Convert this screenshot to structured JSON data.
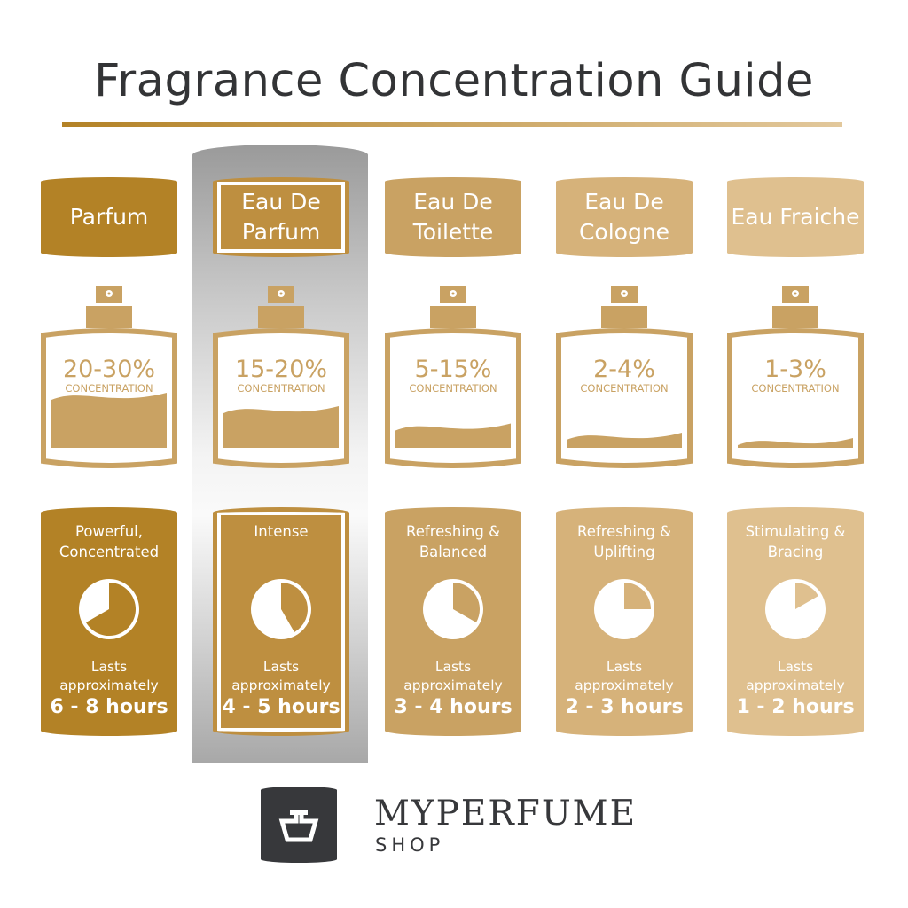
{
  "title": "Fragrance Concentration Guide",
  "logo": {
    "brand": "MYPERFUME",
    "sub": "SHOP"
  },
  "highlighted_index": 1,
  "columns": [
    {
      "name": "Parfum",
      "concentration": "20-30%",
      "concentration_label": "CONCENTRATION",
      "liquid_level": 0.4,
      "description": "Powerful, Concentrated",
      "lasts_label": "Lasts approximately",
      "duration": "6 - 8 hours",
      "duration_max_hours": 8,
      "color": "#b38226"
    },
    {
      "name": "Eau De Parfum",
      "concentration": "15-20%",
      "concentration_label": "CONCENTRATION",
      "liquid_level": 0.3,
      "description": "Intense",
      "lasts_label": "Lasts approximately",
      "duration": "4 - 5 hours",
      "duration_max_hours": 5,
      "color": "#be8f40"
    },
    {
      "name": "Eau De Toilette",
      "concentration": "5-15%",
      "concentration_label": "CONCENTRATION",
      "liquid_level": 0.17,
      "description": "Refreshing & Balanced",
      "lasts_label": "Lasts approximately",
      "duration": "3 - 4 hours",
      "duration_max_hours": 4,
      "color": "#c9a263"
    },
    {
      "name": "Eau De Cologne",
      "concentration": "2-4%",
      "concentration_label": "CONCENTRATION",
      "liquid_level": 0.1,
      "description": "Refreshing & Uplifting",
      "lasts_label": "Lasts approximately",
      "duration": "2 - 3 hours",
      "duration_max_hours": 3,
      "color": "#d6b27a"
    },
    {
      "name": "Eau Fraiche",
      "concentration": "1-3%",
      "concentration_label": "CONCENTRATION",
      "liquid_level": 0.06,
      "description": "Stimulating & Bracing",
      "lasts_label": "Lasts approximately",
      "duration": "1 - 2 hours",
      "duration_max_hours": 2,
      "color": "#dfc08f"
    }
  ],
  "bottle_color": "#c9a263",
  "text_color": "#333436"
}
